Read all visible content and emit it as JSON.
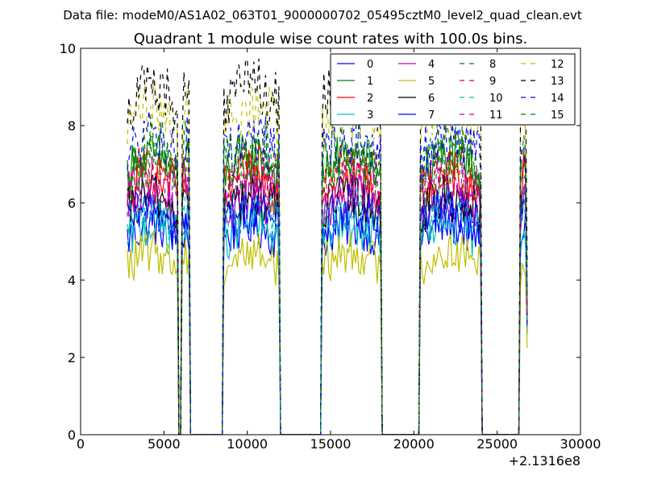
{
  "suptitle": "Data file: modeM0/AS1A02_063T01_9000000702_05495cztM0_level2_quad_clean.evt",
  "chart_data": {
    "type": "line",
    "title": "Quadrant 1 module wise count rates with 100.0s bins.",
    "xlabel": "",
    "ylabel": "",
    "xlim": [
      0,
      30000
    ],
    "ylim": [
      0,
      10
    ],
    "x_offset_label": "+2.1316e8",
    "xticks": [
      0,
      5000,
      10000,
      15000,
      20000,
      25000,
      30000
    ],
    "yticks": [
      0,
      2,
      4,
      6,
      8,
      10
    ],
    "grid": false,
    "legend_position": "top-right",
    "legend_columns": 4,
    "bin_seconds": 100,
    "segments": [
      [
        2800,
        5800
      ],
      [
        6100,
        6500
      ],
      [
        8600,
        11900
      ],
      [
        14500,
        18000
      ],
      [
        20400,
        24000
      ],
      [
        26400,
        26800
      ]
    ],
    "gaps_at_zero": [
      [
        5800,
        6100
      ],
      [
        6500,
        8600
      ],
      [
        11900,
        14500
      ],
      [
        18000,
        20400
      ],
      [
        24000,
        26400
      ]
    ],
    "series": [
      {
        "name": "0",
        "color": "#0000ff",
        "style": "solid",
        "level": 5.2
      },
      {
        "name": "1",
        "color": "#008000",
        "style": "solid",
        "level": 6.9
      },
      {
        "name": "2",
        "color": "#ff0000",
        "style": "solid",
        "level": 6.4
      },
      {
        "name": "3",
        "color": "#00bfbf",
        "style": "solid",
        "level": 5.2
      },
      {
        "name": "4",
        "color": "#bf00bf",
        "style": "solid",
        "level": 5.9
      },
      {
        "name": "5",
        "color": "#bfbf00",
        "style": "solid",
        "level": 4.5
      },
      {
        "name": "6",
        "color": "#000000",
        "style": "solid",
        "level": 5.9
      },
      {
        "name": "7",
        "color": "#0000ff",
        "style": "solid",
        "level": 5.6
      },
      {
        "name": "8",
        "color": "#008000",
        "style": "dashed",
        "level": 6.8
      },
      {
        "name": "9",
        "color": "#ff0000",
        "style": "dashed",
        "level": 6.7
      },
      {
        "name": "10",
        "color": "#00bfbf",
        "style": "dashed",
        "level": 5.6
      },
      {
        "name": "11",
        "color": "#bf00bf",
        "style": "dashed",
        "level": 6.3
      },
      {
        "name": "12",
        "color": "#bfbf00",
        "style": "dashed",
        "level": 8.2
      },
      {
        "name": "13",
        "color": "#000000",
        "style": "dashed",
        "level": 8.7
      },
      {
        "name": "14",
        "color": "#0000ff",
        "style": "dashed",
        "level": 7.4
      },
      {
        "name": "15",
        "color": "#008000",
        "style": "dashed",
        "level": 7.2
      }
    ]
  }
}
